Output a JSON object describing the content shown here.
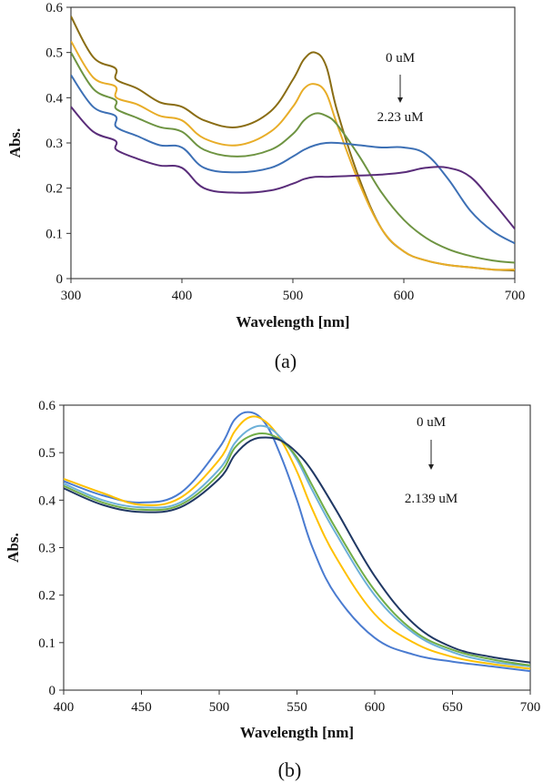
{
  "chart_data": [
    {
      "type": "line",
      "panel_label": "(a)",
      "xlabel": "Wavelength [nm]",
      "ylabel": "Abs.",
      "xlim": [
        300,
        700
      ],
      "ylim": [
        0,
        0.6
      ],
      "xticks": [
        300,
        400,
        500,
        600,
        700
      ],
      "yticks": [
        0,
        0.1,
        0.2,
        0.3,
        0.4,
        0.5,
        0.6
      ],
      "xtick_labels": [
        "300",
        "400",
        "500",
        "600",
        "700"
      ],
      "ytick_labels": [
        "0",
        "0.1",
        "0.2",
        "0.3",
        "0.4",
        "0.5",
        "0.6"
      ],
      "grid": false,
      "legend": null,
      "annotation": {
        "top": "0 uM",
        "bottom": "2.23 uM",
        "arrow": "down"
      },
      "x": [
        300,
        320,
        340,
        341,
        360,
        380,
        400,
        420,
        450,
        480,
        500,
        510,
        520,
        530,
        540,
        560,
        580,
        600,
        620,
        640,
        660,
        680,
        700
      ],
      "series": [
        {
          "color": "#8a6d14",
          "values": [
            0.58,
            0.49,
            0.465,
            0.44,
            0.42,
            0.39,
            0.38,
            0.35,
            0.335,
            0.37,
            0.44,
            0.485,
            0.5,
            0.47,
            0.37,
            0.22,
            0.11,
            0.06,
            0.04,
            0.03,
            0.025,
            0.02,
            0.018
          ]
        },
        {
          "color": "#e8ad28",
          "values": [
            0.525,
            0.445,
            0.425,
            0.4,
            0.385,
            0.36,
            0.35,
            0.31,
            0.295,
            0.325,
            0.38,
            0.42,
            0.43,
            0.41,
            0.34,
            0.21,
            0.11,
            0.06,
            0.04,
            0.03,
            0.025,
            0.02,
            0.02
          ]
        },
        {
          "color": "#6e9442",
          "values": [
            0.5,
            0.42,
            0.395,
            0.375,
            0.355,
            0.335,
            0.325,
            0.285,
            0.27,
            0.285,
            0.32,
            0.35,
            0.365,
            0.36,
            0.34,
            0.27,
            0.19,
            0.13,
            0.09,
            0.065,
            0.05,
            0.04,
            0.035
          ]
        },
        {
          "color": "#3d70b5",
          "values": [
            0.45,
            0.38,
            0.36,
            0.335,
            0.315,
            0.295,
            0.29,
            0.245,
            0.235,
            0.245,
            0.27,
            0.285,
            0.295,
            0.3,
            0.3,
            0.295,
            0.29,
            0.29,
            0.275,
            0.22,
            0.15,
            0.105,
            0.078
          ]
        },
        {
          "color": "#5a2d7a",
          "values": [
            0.38,
            0.325,
            0.305,
            0.285,
            0.265,
            0.25,
            0.245,
            0.2,
            0.19,
            0.195,
            0.21,
            0.22,
            0.225,
            0.225,
            0.226,
            0.228,
            0.23,
            0.235,
            0.245,
            0.245,
            0.225,
            0.17,
            0.11
          ]
        }
      ]
    },
    {
      "type": "line",
      "panel_label": "(b)",
      "xlabel": "Wavelength [nm]",
      "ylabel": "Abs.",
      "xlim": [
        400,
        700
      ],
      "ylim": [
        0,
        0.6
      ],
      "xticks": [
        400,
        450,
        500,
        550,
        600,
        650,
        700
      ],
      "yticks": [
        0,
        0.1,
        0.2,
        0.3,
        0.4,
        0.5,
        0.6
      ],
      "xtick_labels": [
        "400",
        "450",
        "500",
        "550",
        "600",
        "650",
        "700"
      ],
      "ytick_labels": [
        "0",
        "0.1",
        "0.2",
        "0.3",
        "0.4",
        "0.5",
        "0.6"
      ],
      "grid": false,
      "legend": null,
      "annotation": {
        "top": "0 uM",
        "bottom": "2.139 uM",
        "arrow": "down"
      },
      "x": [
        400,
        425,
        450,
        475,
        500,
        510,
        520,
        530,
        540,
        550,
        560,
        575,
        600,
        625,
        650,
        675,
        700
      ],
      "series": [
        {
          "color": "#4a7bd0",
          "values": [
            0.44,
            0.41,
            0.395,
            0.415,
            0.51,
            0.57,
            0.585,
            0.56,
            0.49,
            0.4,
            0.3,
            0.2,
            0.11,
            0.075,
            0.06,
            0.05,
            0.04
          ]
        },
        {
          "color": "#ffc000",
          "values": [
            0.445,
            0.415,
            0.39,
            0.405,
            0.485,
            0.545,
            0.575,
            0.565,
            0.525,
            0.46,
            0.38,
            0.28,
            0.16,
            0.1,
            0.07,
            0.055,
            0.045
          ]
        },
        {
          "color": "#6cb0d8",
          "values": [
            0.435,
            0.4,
            0.385,
            0.395,
            0.465,
            0.52,
            0.55,
            0.555,
            0.53,
            0.485,
            0.42,
            0.33,
            0.2,
            0.12,
            0.08,
            0.06,
            0.05
          ]
        },
        {
          "color": "#70ad47",
          "values": [
            0.43,
            0.395,
            0.38,
            0.39,
            0.455,
            0.51,
            0.535,
            0.54,
            0.525,
            0.49,
            0.43,
            0.34,
            0.21,
            0.125,
            0.085,
            0.065,
            0.052
          ]
        },
        {
          "color": "#203864",
          "values": [
            0.425,
            0.39,
            0.375,
            0.385,
            0.445,
            0.495,
            0.525,
            0.532,
            0.525,
            0.5,
            0.46,
            0.38,
            0.24,
            0.14,
            0.09,
            0.07,
            0.058
          ]
        }
      ]
    }
  ]
}
